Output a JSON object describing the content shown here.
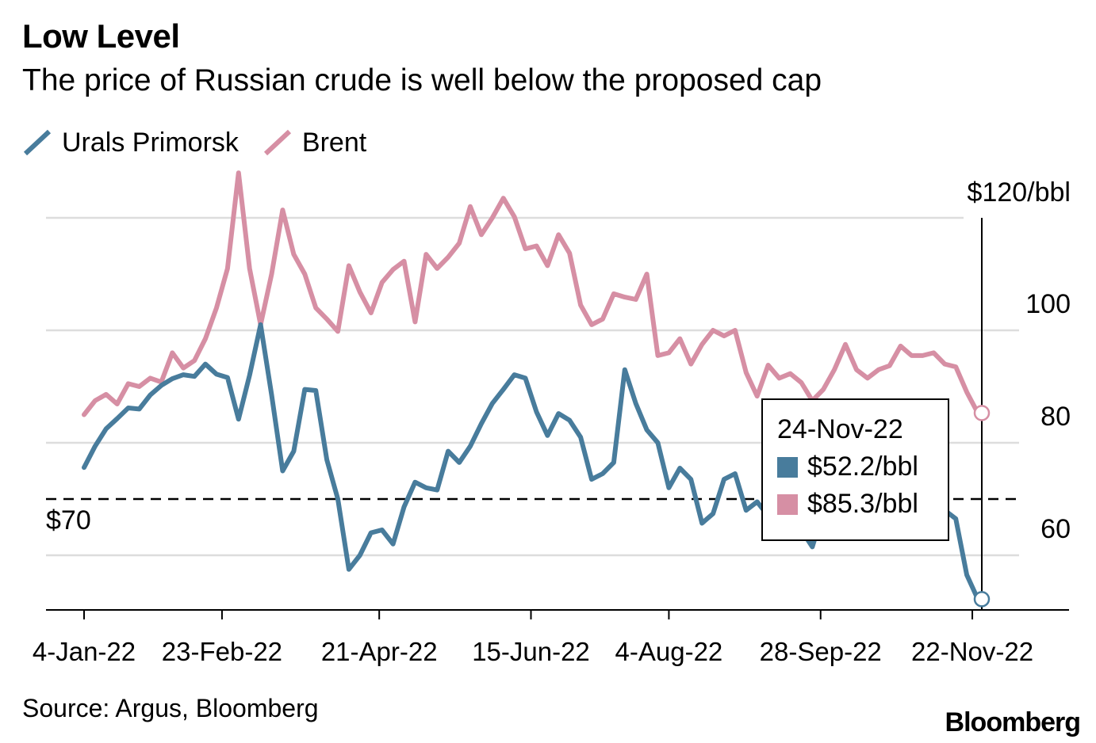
{
  "title": "Low Level",
  "subtitle": "The price of Russian crude is well below the proposed cap",
  "source": "Source: Argus, Bloomberg",
  "logo": "Bloomberg",
  "colors": {
    "urals": "#487c9c",
    "brent": "#d68fa4",
    "grid": "#dddddd",
    "cap": "#000000"
  },
  "tooltip": {
    "date": "24-Nov-22",
    "urals": "$52.2/bbl",
    "brent": "$85.3/bbl"
  },
  "chart_data": {
    "type": "line",
    "title": "Low Level",
    "subtitle": "The price of Russian crude is well below the proposed cap",
    "legend": "top-left",
    "grid": true,
    "ylim": [
      50,
      120
    ],
    "y_ticks": [
      60,
      80,
      100,
      120
    ],
    "y_tick_labels": [
      "60",
      "80",
      "100",
      "$120/bbl"
    ],
    "x_ticks": [
      "2022-01-04",
      "2022-02-23",
      "2022-04-21",
      "2022-06-15",
      "2022-08-04",
      "2022-09-28",
      "2022-11-22"
    ],
    "x_tick_labels": [
      "4-Jan-22",
      "23-Feb-22",
      "21-Apr-22",
      "15-Jun-22",
      "4-Aug-22",
      "28-Sep-22",
      "22-Nov-22"
    ],
    "xlim": [
      "2022-01-04",
      "2022-11-24"
    ],
    "reference_line": {
      "value": 70,
      "label": "$70"
    },
    "dates": [
      "2022-01-04",
      "2022-01-08",
      "2022-01-12",
      "2022-01-16",
      "2022-01-20",
      "2022-01-24",
      "2022-01-28",
      "2022-02-01",
      "2022-02-05",
      "2022-02-09",
      "2022-02-13",
      "2022-02-17",
      "2022-02-21",
      "2022-02-25",
      "2022-03-01",
      "2022-03-05",
      "2022-03-09",
      "2022-03-13",
      "2022-03-17",
      "2022-03-21",
      "2022-03-25",
      "2022-03-29",
      "2022-04-02",
      "2022-04-06",
      "2022-04-10",
      "2022-04-14",
      "2022-04-18",
      "2022-04-22",
      "2022-04-26",
      "2022-04-30",
      "2022-05-04",
      "2022-05-08",
      "2022-05-12",
      "2022-05-16",
      "2022-05-20",
      "2022-05-24",
      "2022-05-28",
      "2022-06-01",
      "2022-06-05",
      "2022-06-09",
      "2022-06-13",
      "2022-06-17",
      "2022-06-21",
      "2022-06-25",
      "2022-06-29",
      "2022-07-03",
      "2022-07-07",
      "2022-07-11",
      "2022-07-15",
      "2022-07-19",
      "2022-07-23",
      "2022-07-27",
      "2022-07-31",
      "2022-08-04",
      "2022-08-08",
      "2022-08-12",
      "2022-08-16",
      "2022-08-20",
      "2022-08-24",
      "2022-08-28",
      "2022-09-01",
      "2022-09-05",
      "2022-09-09",
      "2022-09-13",
      "2022-09-17",
      "2022-09-21",
      "2022-09-25",
      "2022-09-29",
      "2022-10-03",
      "2022-10-07",
      "2022-10-11",
      "2022-10-15",
      "2022-10-19",
      "2022-10-23",
      "2022-10-27",
      "2022-10-31",
      "2022-11-04",
      "2022-11-08",
      "2022-11-12",
      "2022-11-16",
      "2022-11-20",
      "2022-11-24"
    ],
    "series": [
      {
        "name": "Urals Primorsk",
        "values": [
          75.6,
          79.4,
          82.5,
          84.3,
          86.2,
          86,
          88.5,
          90.2,
          91.4,
          92.1,
          91.8,
          94,
          92.2,
          91.6,
          84.2,
          92,
          101,
          88.5,
          75,
          78.5,
          89.5,
          89.3,
          77,
          70,
          57.5,
          60,
          64,
          64.5,
          62,
          68.6,
          73,
          72,
          71.6,
          78.5,
          76.5,
          79.4,
          83.4,
          87,
          89.5,
          92.1,
          91.5,
          85.5,
          81.3,
          85.2,
          84,
          81,
          73.5,
          74.5,
          76.5,
          93,
          87,
          82.3,
          80,
          72,
          75.5,
          73.5,
          65.7,
          67.4,
          73.5,
          74.5,
          68,
          69.5,
          67,
          68,
          67.5,
          64.5,
          61.5,
          68,
          69,
          68.5,
          68,
          69,
          68,
          68.5,
          67.5,
          68,
          68,
          67,
          68,
          66.5,
          56.5,
          52.2
        ]
      },
      {
        "name": "Brent",
        "values": [
          85,
          87.5,
          88.6,
          86.9,
          90.5,
          90,
          91.5,
          90.8,
          96,
          93.3,
          94.6,
          98.5,
          104,
          111,
          128,
          111,
          101,
          110,
          121.4,
          113.5,
          110,
          104,
          102,
          99.8,
          111.5,
          106.8,
          103.1,
          108.5,
          110.8,
          112.3,
          101.5,
          113.5,
          111,
          113,
          115.5,
          122,
          117,
          120,
          123.5,
          120.2,
          114.5,
          115,
          111.5,
          117,
          113.7,
          104.5,
          101,
          102,
          106.5,
          105.9,
          105.5,
          110,
          95.5,
          96,
          98.5,
          94,
          97.5,
          100,
          99,
          100,
          92.5,
          88.3,
          93.8,
          91.5,
          92.3,
          90.7,
          87.5,
          89.5,
          93,
          97.5,
          93,
          91.5,
          93,
          93.7,
          97.2,
          95.5,
          95.5,
          96,
          94,
          93.5,
          89,
          85.3
        ]
      }
    ]
  }
}
